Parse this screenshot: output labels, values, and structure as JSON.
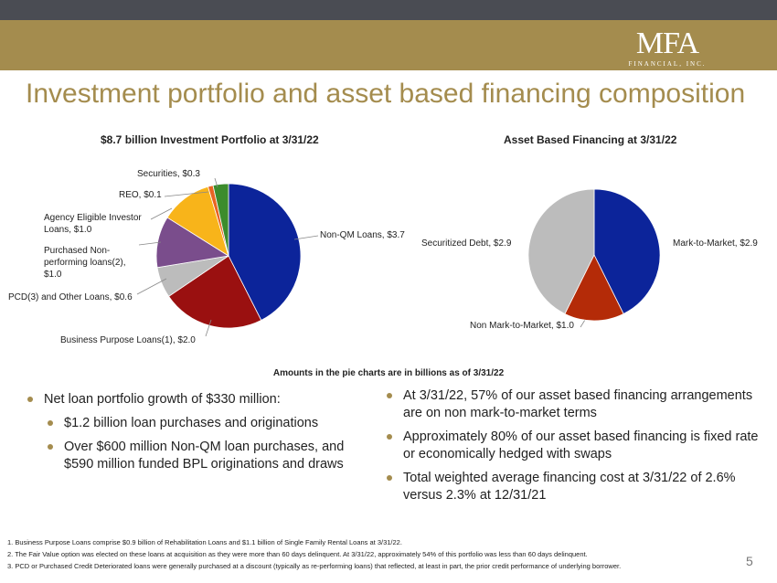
{
  "header": {
    "logo_text": "MFA",
    "logo_sub": "FINANCIAL, INC."
  },
  "title": "Investment portfolio and asset based financing composition",
  "chart_data": [
    {
      "type": "pie",
      "title": "$8.7 billion Investment Portfolio at 3/31/22",
      "slices": [
        {
          "label": "Non-QM Loans, $3.7",
          "value": 3.7,
          "color": "#0c249a"
        },
        {
          "label": "Business Purpose Loans(1), $2.0",
          "value": 2.0,
          "color": "#9a1010"
        },
        {
          "label": "PCD(3) and Other Loans, $0.6",
          "value": 0.6,
          "color": "#bcbcbc"
        },
        {
          "label": "Purchased Non-performing loans(2), $1.0",
          "value": 1.0,
          "color": "#7a4d8c"
        },
        {
          "label": "Agency Eligible Investor Loans, $1.0",
          "value": 1.0,
          "color": "#f8b41a"
        },
        {
          "label": "REO, $0.1",
          "value": 0.1,
          "color": "#e86422"
        },
        {
          "label": "Securities, $0.3",
          "value": 0.3,
          "color": "#3c8c2c"
        }
      ]
    },
    {
      "type": "pie",
      "title": "Asset Based Financing at 3/31/22",
      "slices": [
        {
          "label": "Mark-to-Market, $2.9",
          "value": 2.9,
          "color": "#0c249a"
        },
        {
          "label": "Non Mark-to-Market, $1.0",
          "value": 1.0,
          "color": "#b42b08"
        },
        {
          "label": "Securitized Debt, $2.9",
          "value": 2.9,
          "color": "#bcbcbc"
        }
      ]
    }
  ],
  "labels": {
    "nonqm": "Non-QM Loans, $3.7",
    "bpl": "Business Purpose Loans(1), $2.0",
    "pcd": "PCD(3) and Other Loans, $0.6",
    "npl_1": "Purchased Non-",
    "npl_2": "performing loans(2),",
    "npl_3": "$1.0",
    "agency_1": "Agency Eligible Investor",
    "agency_2": "Loans, $1.0",
    "reo": "REO, $0.1",
    "securities": "Securities, $0.3",
    "mtm": "Mark-to-Market, $2.9",
    "nonmtm": "Non Mark-to-Market, $1.0",
    "securitized": "Securitized Debt, $2.9"
  },
  "note": "Amounts in the pie charts are in billions as of 3/31/22",
  "left_bullets": {
    "main": "Net loan portfolio growth of $330 million:",
    "sub1": "$1.2 billion loan purchases and originations",
    "sub2": "Over $600 million Non-QM loan purchases, and $590 million funded BPL originations and draws"
  },
  "right_bullets": [
    "At 3/31/22, 57% of our asset based financing arrangements are on non mark-to-market terms",
    "Approximately 80% of our asset based financing is fixed rate or economically hedged with swaps",
    "Total weighted average financing cost at 3/31/22 of 2.6% versus 2.3% at 12/31/21"
  ],
  "footnotes": [
    "1. Business Purpose Loans comprise $0.9 billion of Rehabilitation Loans and $1.1 billion of Single Family Rental Loans at 3/31/22.",
    "2. The Fair Value option was elected on these loans at acquisition as they were more than 60 days delinquent. At 3/31/22, approximately 54% of this portfolio was less than 60 days delinquent.",
    "3. PCD or Purchased Credit Deteriorated loans were generally purchased at a discount (typically as re-performing loans) that reflected, at least in part, the prior credit performance of underlying borrower."
  ],
  "page_number": "5"
}
